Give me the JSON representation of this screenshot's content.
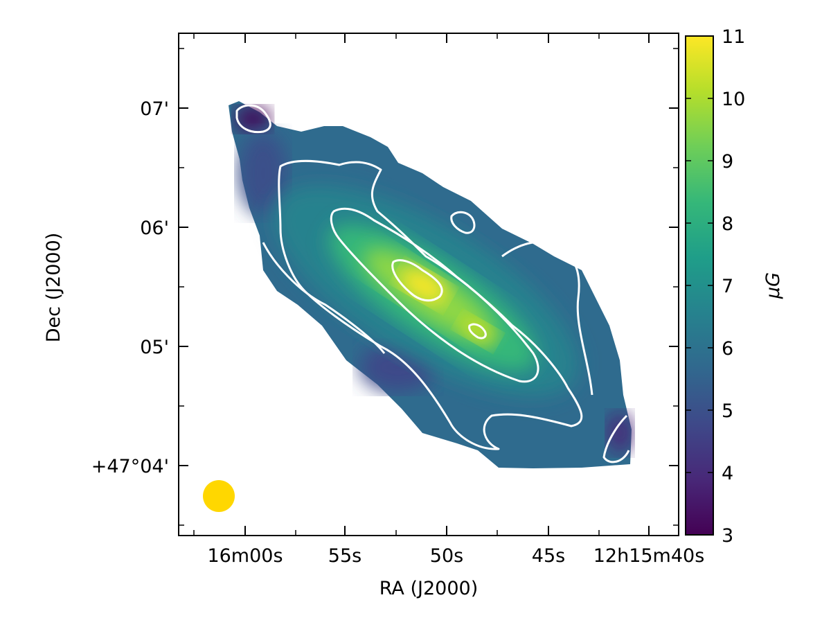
{
  "chart_data": {
    "type": "heatmap",
    "title": "",
    "xlabel": "RA (J2000)",
    "ylabel": "Dec (J2000)",
    "x_ticks": [
      "16m00s",
      "55s",
      "50s",
      "45s",
      "12h15m40s"
    ],
    "y_ticks": [
      "+47°04'",
      "05'",
      "06'",
      "07'"
    ],
    "colorbar": {
      "label": "μG",
      "min": 3,
      "max": 11,
      "ticks": [
        3,
        4,
        5,
        6,
        7,
        8,
        9,
        10,
        11
      ],
      "colormap": "viridis",
      "stops": [
        "#440154",
        "#482878",
        "#3e4989",
        "#31688e",
        "#26828e",
        "#1f9e89",
        "#35b779",
        "#6ece58",
        "#b5de2b",
        "#fde725"
      ]
    },
    "map": {
      "description_values": {
        "edge_min": 3.5,
        "outer_level": 6,
        "mid_level": 8,
        "inner_level": 10,
        "peak": 10.8
      },
      "contour_levels": [
        6,
        8,
        10
      ],
      "contour_color": "#ffffff"
    },
    "beam": {
      "color": "#ffd700"
    }
  }
}
